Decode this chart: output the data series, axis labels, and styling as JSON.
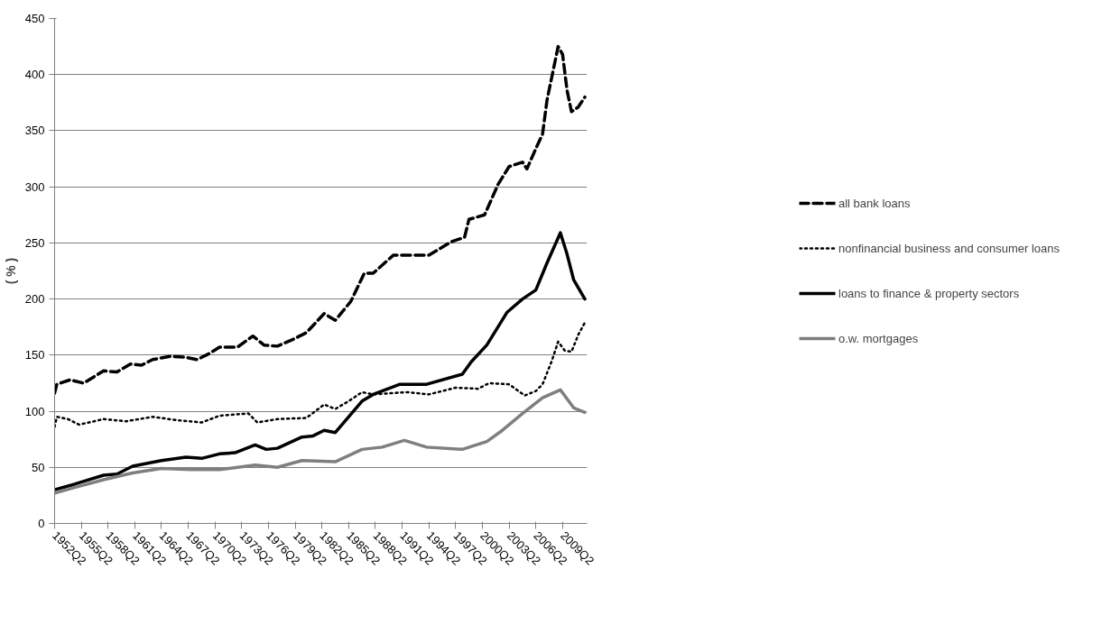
{
  "chart_data": {
    "type": "line",
    "ylabel": "( % )",
    "xlim": [
      "1952-04",
      "2012-01"
    ],
    "ylim": [
      0,
      450
    ],
    "yticks": [
      0,
      50,
      100,
      150,
      200,
      250,
      300,
      350,
      400,
      450
    ],
    "xticks": [
      {
        "value": "1952-04",
        "label": "1952Q2"
      },
      {
        "value": "1955-04",
        "label": "1955Q2"
      },
      {
        "value": "1958-04",
        "label": "1958Q2"
      },
      {
        "value": "1961-04",
        "label": "1961Q2"
      },
      {
        "value": "1964-04",
        "label": "1964Q2"
      },
      {
        "value": "1967-04",
        "label": "1967Q2"
      },
      {
        "value": "1970-04",
        "label": "1970Q2"
      },
      {
        "value": "1973-04",
        "label": "1973Q2"
      },
      {
        "value": "1976-04",
        "label": "1976Q2"
      },
      {
        "value": "1979-04",
        "label": "1979Q2"
      },
      {
        "value": "1982-04",
        "label": "1982Q2"
      },
      {
        "value": "1985-04",
        "label": "1985Q2"
      },
      {
        "value": "1988-04",
        "label": "1988Q2"
      },
      {
        "value": "1991-04",
        "label": "1991Q2"
      },
      {
        "value": "1994-04",
        "label": "1994Q2"
      },
      {
        "value": "1997-04",
        "label": "1997Q2"
      },
      {
        "value": "2000-04",
        "label": "2000Q2"
      },
      {
        "value": "2003-04",
        "label": "2003Q2"
      },
      {
        "value": "2006-04",
        "label": "2006Q2"
      },
      {
        "value": "2009-04",
        "label": "2009Q2"
      }
    ],
    "grid": "y",
    "legend": "right",
    "series": [
      {
        "name": "all bank loans",
        "color": "#000000",
        "line_style": "dashed",
        "x": [
          "1952-04",
          "1952-07",
          "1954-01",
          "1955-07",
          "1957-10",
          "1959-04",
          "1960-10",
          "1962-01",
          "1963-04",
          "1965-04",
          "1967-01",
          "1968-04",
          "1969-07",
          "1970-10",
          "1972-10",
          "1974-07",
          "1975-10",
          "1977-04",
          "1979-01",
          "1980-07",
          "1982-07",
          "1983-10",
          "1985-07",
          "1987-01",
          "1988-01",
          "1990-04",
          "1992-10",
          "1994-04",
          "1996-10",
          "1998-04",
          "1998-10",
          "2000-07",
          "2002-01",
          "2003-04",
          "2004-10",
          "2005-04",
          "2006-04",
          "2007-01",
          "2007-07",
          "2008-10",
          "2009-04",
          "2009-10",
          "2010-04",
          "2011-01",
          "2011-10"
        ],
        "values": [
          116,
          124,
          128,
          125,
          136,
          135,
          142,
          141,
          146,
          149,
          148,
          146,
          151,
          157,
          157,
          167,
          159,
          158,
          164,
          170,
          187,
          181,
          198,
          223,
          223,
          239,
          239,
          239,
          251,
          255,
          271,
          275,
          302,
          318,
          322,
          316,
          334,
          347,
          377,
          425,
          418,
          386,
          367,
          371,
          380
        ]
      },
      {
        "name": "nonfinancial business and consumer loans",
        "color": "#000000",
        "line_style": "dotted",
        "x": [
          "1952-04",
          "1952-07",
          "1953-10",
          "1955-01",
          "1957-10",
          "1960-04",
          "1963-04",
          "1966-01",
          "1968-10",
          "1970-10",
          "1974-01",
          "1975-01",
          "1977-04",
          "1980-07",
          "1982-07",
          "1983-10",
          "1985-04",
          "1986-10",
          "1988-01",
          "1991-10",
          "1994-04",
          "1997-04",
          "1999-10",
          "2001-01",
          "2003-04",
          "2005-01",
          "2006-04",
          "2007-01",
          "2008-01",
          "2008-10",
          "2009-07",
          "2010-04",
          "2011-01",
          "2011-10"
        ],
        "values": [
          86,
          95,
          93,
          88,
          93,
          91,
          95,
          92,
          90,
          96,
          98,
          90,
          93,
          94,
          106,
          102,
          109,
          117,
          115,
          117,
          115,
          121,
          120,
          125,
          124,
          114,
          118,
          124,
          144,
          162,
          154,
          153,
          168,
          179
        ]
      },
      {
        "name": "loans to finance & property sectors",
        "color": "#000000",
        "line_style": "solid",
        "x": [
          "1952-04",
          "1954-07",
          "1957-10",
          "1959-04",
          "1961-01",
          "1964-04",
          "1967-01",
          "1968-10",
          "1970-10",
          "1972-07",
          "1974-10",
          "1976-01",
          "1977-04",
          "1980-01",
          "1981-04",
          "1982-07",
          "1983-10",
          "1986-10",
          "1988-01",
          "1991-01",
          "1994-01",
          "1998-01",
          "1999-01",
          "2000-10",
          "2003-01",
          "2004-10",
          "2006-04",
          "2007-07",
          "2009-01",
          "2009-10",
          "2010-07",
          "2011-10"
        ],
        "values": [
          30,
          35,
          43,
          44,
          51,
          56,
          59,
          58,
          62,
          63,
          70,
          66,
          67,
          77,
          78,
          83,
          81,
          109,
          115,
          124,
          124,
          133,
          144,
          159,
          188,
          200,
          208,
          232,
          259,
          240,
          217,
          200
        ]
      },
      {
        "name": "o.w. mortgages",
        "color": "#7f7f7f",
        "line_style": "solid",
        "x": [
          "1952-04",
          "1954-07",
          "1957-10",
          "1961-01",
          "1964-04",
          "1967-07",
          "1970-10",
          "1974-10",
          "1977-04",
          "1980-01",
          "1983-10",
          "1986-10",
          "1989-01",
          "1991-07",
          "1994-01",
          "1998-01",
          "2000-10",
          "2002-07",
          "2004-10",
          "2007-01",
          "2009-01",
          "2010-07",
          "2011-10"
        ],
        "values": [
          27,
          32,
          39,
          45,
          49,
          48,
          48,
          52,
          50,
          56,
          55,
          66,
          68,
          74,
          68,
          66,
          73,
          83,
          98,
          112,
          119,
          103,
          99
        ]
      }
    ]
  }
}
